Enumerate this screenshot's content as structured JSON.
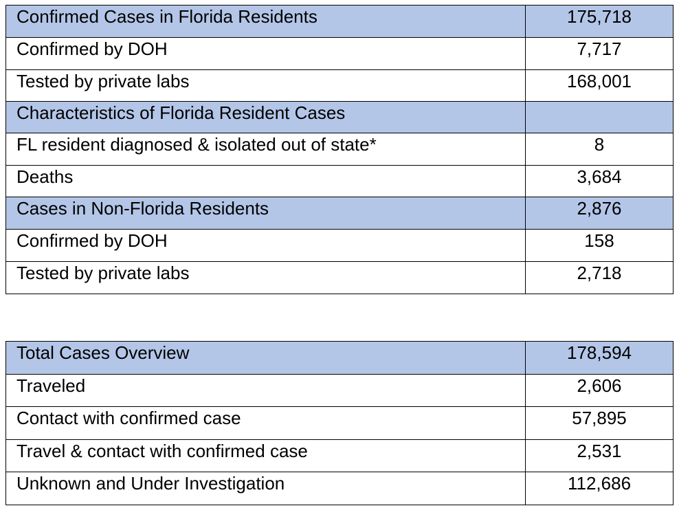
{
  "table_1": {
    "rows": [
      {
        "label": "Confirmed Cases in Florida Residents",
        "value": "175,718",
        "header": true
      },
      {
        "label": "Confirmed by DOH",
        "value": "7,717",
        "header": false
      },
      {
        "label": "Tested by private labs",
        "value": "168,001",
        "header": false
      },
      {
        "label": "Characteristics of Florida Resident Cases",
        "value": "",
        "header": true
      },
      {
        "label": "FL resident diagnosed & isolated out of state*",
        "value": "8",
        "header": false
      },
      {
        "label": "Deaths",
        "value": "3,684",
        "header": false
      },
      {
        "label": "Cases in Non-Florida Residents",
        "value": "2,876",
        "header": true
      },
      {
        "label": "Confirmed by DOH",
        "value": "158",
        "header": false
      },
      {
        "label": "Tested by private labs",
        "value": "2,718",
        "header": false
      }
    ]
  },
  "table_2": {
    "rows": [
      {
        "label": "Total Cases Overview",
        "value": "178,594",
        "header": true
      },
      {
        "label": "Traveled",
        "value": "2,606",
        "header": false
      },
      {
        "label": "Contact with confirmed case",
        "value": "57,895",
        "header": false
      },
      {
        "label": "Travel & contact with confirmed case",
        "value": "2,531",
        "header": false
      },
      {
        "label": "Unknown and Under Investigation",
        "value": "112,686",
        "header": false
      }
    ]
  },
  "colors": {
    "header_fill": "#b4c6e7",
    "border": "#000000",
    "text": "#000000"
  }
}
